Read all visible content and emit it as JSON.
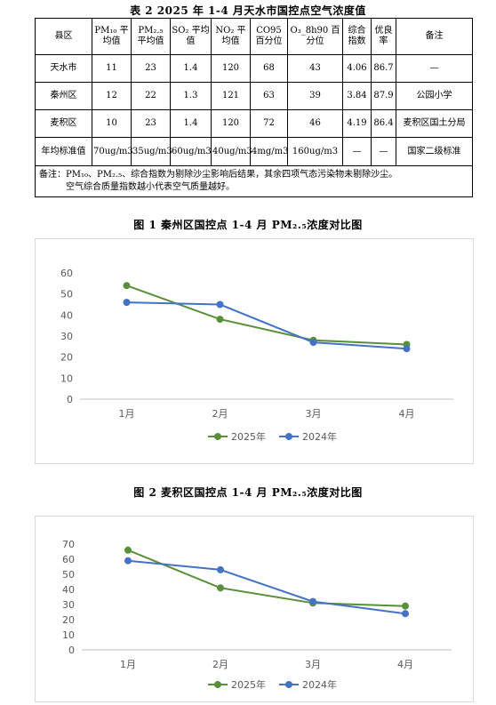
{
  "table": {
    "caption": "表 2   2025 年 1-4 月天水市国控点空气浓度值",
    "headers": [
      "县区",
      "PM₁₀ 平均值",
      "PM₂.₅ 平均值",
      "SO₂ 平均值",
      "NO₂ 平均值",
      "CO95 百分位",
      "O₃_8h90 百分位",
      "综合 指数",
      "优良 率",
      "备注"
    ],
    "rows": [
      [
        "天水市",
        "11",
        "23",
        "1.4",
        "120",
        "68",
        "43",
        "4.06",
        "86.7",
        "—"
      ],
      [
        "秦州区",
        "12",
        "22",
        "1.3",
        "121",
        "63",
        "39",
        "3.84",
        "87.9",
        "公园小学"
      ],
      [
        "麦积区",
        "10",
        "23",
        "1.4",
        "120",
        "72",
        "46",
        "4.19",
        "86.4",
        "麦积区国土分局"
      ]
    ],
    "standard_row": [
      "年均标准值",
      "70ug/m3",
      "35ug/m3",
      "60ug/m3",
      "40ug/m3",
      "4mg/m3",
      "160ug/m3",
      "—",
      "—",
      "国家二级标准"
    ],
    "note_line1": "备注：PM₁₀、PM₂.₅、综合指数为剔除沙尘影响后结果，其余四项气态污染物未剔除沙尘。",
    "note_line2": "空气综合质量指数越小代表空气质量越好。"
  },
  "chart_data": [
    {
      "type": "line",
      "title": "图 1    秦州区国控点 1-4 月 PM₂.₅浓度对比图",
      "categories": [
        "1月",
        "2月",
        "3月",
        "4月"
      ],
      "series": [
        {
          "name": "2025年",
          "values": [
            54,
            38,
            28,
            26
          ],
          "color": "#5a8f3a"
        },
        {
          "name": "2024年",
          "values": [
            46,
            45,
            27,
            24
          ],
          "color": "#4472c4"
        }
      ],
      "ylim": [
        0,
        60
      ],
      "yticks": [
        0,
        10,
        20,
        30,
        40,
        50,
        60
      ],
      "grid": false,
      "legend": "bottom"
    },
    {
      "type": "line",
      "title": "图 2    麦积区国控点 1-4 月 PM₂.₅浓度对比图",
      "categories": [
        "1月",
        "2月",
        "3月",
        "4月"
      ],
      "series": [
        {
          "name": "2025年",
          "values": [
            66,
            41,
            31,
            29
          ],
          "color": "#5a8f3a"
        },
        {
          "name": "2024年",
          "values": [
            59,
            53,
            32,
            24
          ],
          "color": "#4472c4"
        }
      ],
      "ylim": [
        0,
        70
      ],
      "yticks": [
        0,
        10,
        20,
        30,
        40,
        50,
        60,
        70
      ],
      "grid": false,
      "legend": "bottom"
    }
  ]
}
